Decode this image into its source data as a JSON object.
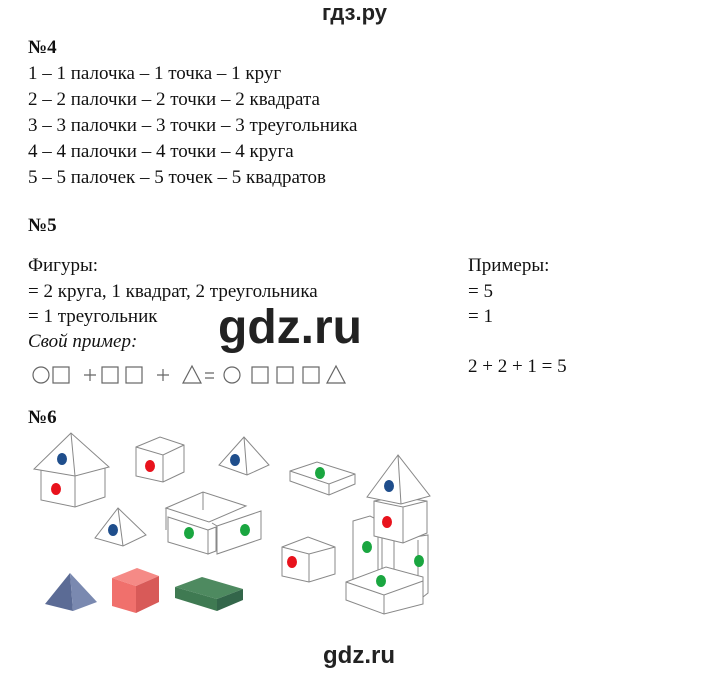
{
  "site_title": "гдз.ру",
  "watermark": "gdz.ru",
  "footer_watermark": "gdz.ru",
  "task4": {
    "heading": "№4",
    "lines": [
      "1 – 1 палочка – 1 точка – 1 круг",
      "2 – 2 палочки – 2 точки – 2 квадрата",
      "3 – 3 палочки – 3 точки – 3 треугольника",
      "4 – 4 палочки – 4 точки – 4 круга",
      "5 – 5 палочек – 5 точек – 5 квадратов"
    ]
  },
  "task5": {
    "heading": "№5",
    "figures_label": "Фигуры:",
    "figures": [
      "= 2 круга, 1 квадрат, 2 треугольника",
      "= 1 треугольник"
    ],
    "own_example_label": "Свой пример:",
    "examples_label": "Примеры:",
    "examples": [
      "= 5",
      "= 1"
    ],
    "own_example_result": "2 + 2 + 1 = 5",
    "shape_equation": [
      "circle",
      "square",
      "+",
      "square",
      "square",
      "+",
      "triangle",
      "=",
      "circle",
      "square",
      "square",
      "square",
      "triangle"
    ]
  },
  "task6": {
    "heading": "№6",
    "colors": {
      "blue": "#1f4e8c",
      "red": "#e8121c",
      "green": "#1aa640",
      "pyramid": "#6f7fa8",
      "cube": "#f0706c",
      "brick": "#3f7a52"
    }
  }
}
